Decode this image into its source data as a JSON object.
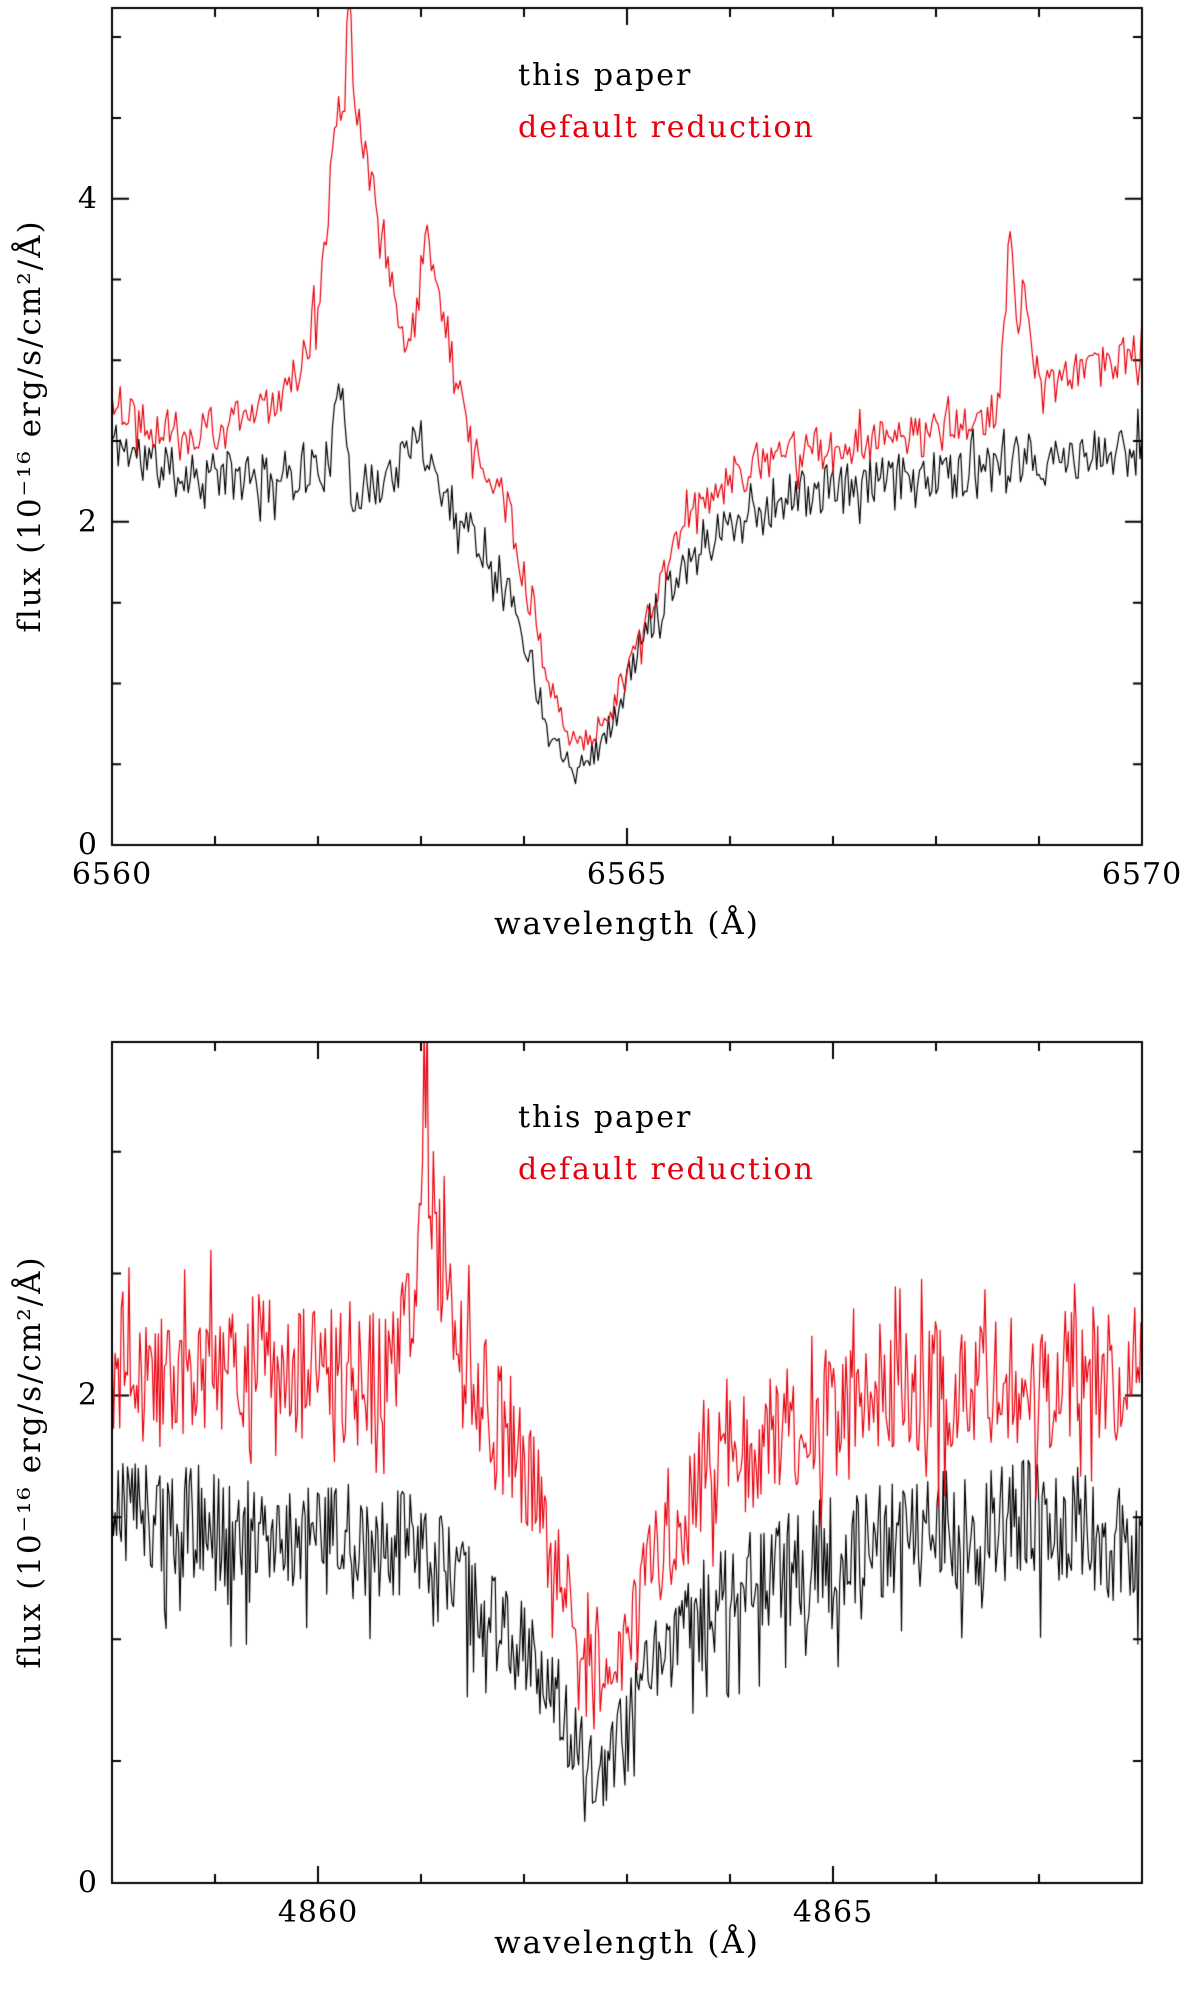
{
  "figure": {
    "description": "Two stacked spectral comparison plots (H-alpha top, H-beta bottom) comparing a custom reduction against the default reduction"
  },
  "chart_data": [
    {
      "type": "line",
      "title": "",
      "xlabel": "wavelength (Å)",
      "ylabel": "flux (10⁻¹⁶ erg/s/cm²/Å)",
      "xlim": [
        6560,
        6570
      ],
      "ylim": [
        0,
        5.18
      ],
      "xticks_major": [
        6560,
        6565,
        6570
      ],
      "xtick_labels": [
        "6560",
        "6565",
        "6570"
      ],
      "xticks_minor_step": 1,
      "yticks_major": [
        0,
        2,
        4
      ],
      "ytick_labels": [
        "0",
        "2",
        "4"
      ],
      "yticks_minor_step": 0.5,
      "grid": false,
      "legend_position": "top-center-inside",
      "legend": [
        {
          "label": "this paper",
          "color": "#000000"
        },
        {
          "label": "default reduction",
          "color": "#e8000d"
        }
      ],
      "series": [
        {
          "name": "this paper",
          "color": "#000000",
          "sample_step": 0.02,
          "seed": 11,
          "noise": {
            "amp": 0.16,
            "spike_prob": 0.1,
            "spike_mult": 1.8,
            "bias": "both"
          },
          "anchors": [
            [
              6560.0,
              2.5
            ],
            [
              6560.3,
              2.4
            ],
            [
              6560.6,
              2.3
            ],
            [
              6561.0,
              2.3
            ],
            [
              6561.4,
              2.25
            ],
            [
              6561.8,
              2.3
            ],
            [
              6562.1,
              2.35
            ],
            [
              6562.25,
              2.9
            ],
            [
              6562.32,
              2.2
            ],
            [
              6562.5,
              2.2
            ],
            [
              6562.8,
              2.35
            ],
            [
              6563.0,
              2.55
            ],
            [
              6563.1,
              2.35
            ],
            [
              6563.3,
              2.1
            ],
            [
              6563.5,
              1.95
            ],
            [
              6563.7,
              1.75
            ],
            [
              6563.9,
              1.5
            ],
            [
              6564.0,
              1.3
            ],
            [
              6564.1,
              1.05
            ],
            [
              6564.2,
              0.8
            ],
            [
              6564.35,
              0.6
            ],
            [
              6564.5,
              0.5
            ],
            [
              6564.65,
              0.55
            ],
            [
              6564.8,
              0.68
            ],
            [
              6564.95,
              0.9
            ],
            [
              6565.1,
              1.2
            ],
            [
              6565.3,
              1.5
            ],
            [
              6565.5,
              1.7
            ],
            [
              6565.7,
              1.85
            ],
            [
              6565.9,
              1.95
            ],
            [
              6566.2,
              2.05
            ],
            [
              6566.5,
              2.15
            ],
            [
              6567.0,
              2.2
            ],
            [
              6567.5,
              2.25
            ],
            [
              6568.0,
              2.3
            ],
            [
              6568.5,
              2.3
            ],
            [
              6569.0,
              2.35
            ],
            [
              6569.5,
              2.4
            ],
            [
              6570.0,
              2.45
            ]
          ]
        },
        {
          "name": "default reduction",
          "color": "#e8000d",
          "sample_step": 0.02,
          "seed": 22,
          "noise": {
            "amp": 0.14,
            "spike_prob": 0.1,
            "spike_mult": 1.7,
            "bias": "both"
          },
          "anchors": [
            [
              6560.0,
              2.75
            ],
            [
              6560.4,
              2.6
            ],
            [
              6560.8,
              2.55
            ],
            [
              6561.2,
              2.6
            ],
            [
              6561.5,
              2.7
            ],
            [
              6561.8,
              2.95
            ],
            [
              6562.0,
              3.3
            ],
            [
              6562.1,
              3.9
            ],
            [
              6562.15,
              4.35
            ],
            [
              6562.2,
              4.6
            ],
            [
              6562.25,
              4.5
            ],
            [
              6562.3,
              5.3
            ],
            [
              6562.35,
              4.7
            ],
            [
              6562.45,
              4.35
            ],
            [
              6562.55,
              4.0
            ],
            [
              6562.7,
              3.5
            ],
            [
              6562.85,
              3.1
            ],
            [
              6562.95,
              3.2
            ],
            [
              6563.05,
              3.75
            ],
            [
              6563.15,
              3.45
            ],
            [
              6563.25,
              3.2
            ],
            [
              6563.35,
              2.8
            ],
            [
              6563.5,
              2.5
            ],
            [
              6563.65,
              2.35
            ],
            [
              6563.8,
              2.15
            ],
            [
              6563.95,
              1.8
            ],
            [
              6564.1,
              1.4
            ],
            [
              6564.25,
              1.0
            ],
            [
              6564.4,
              0.75
            ],
            [
              6564.55,
              0.65
            ],
            [
              6564.7,
              0.7
            ],
            [
              6564.85,
              0.85
            ],
            [
              6565.0,
              1.05
            ],
            [
              6565.2,
              1.4
            ],
            [
              6565.4,
              1.75
            ],
            [
              6565.6,
              2.0
            ],
            [
              6565.8,
              2.15
            ],
            [
              6566.1,
              2.3
            ],
            [
              6566.4,
              2.4
            ],
            [
              6566.8,
              2.45
            ],
            [
              6567.2,
              2.5
            ],
            [
              6567.6,
              2.5
            ],
            [
              6568.0,
              2.55
            ],
            [
              6568.4,
              2.6
            ],
            [
              6568.6,
              2.7
            ],
            [
              6568.72,
              3.8
            ],
            [
              6568.8,
              3.2
            ],
            [
              6568.88,
              3.45
            ],
            [
              6569.0,
              2.8
            ],
            [
              6569.2,
              2.85
            ],
            [
              6569.5,
              2.95
            ],
            [
              6569.8,
              3.0
            ],
            [
              6570.0,
              3.1
            ]
          ]
        }
      ]
    },
    {
      "type": "line",
      "title": "",
      "xlabel": "wavelength (Å)",
      "ylabel": "flux (10⁻¹⁶ erg/s/cm²/Å)",
      "xlim": [
        4858,
        4868
      ],
      "ylim": [
        0,
        3.45
      ],
      "xticks_major": [
        4860,
        4865
      ],
      "xtick_labels": [
        "4860",
        "4865"
      ],
      "xticks_minor_step": 1,
      "yticks_major": [
        0,
        2
      ],
      "ytick_labels": [
        "0",
        "2"
      ],
      "yticks_minor_step": 0.5,
      "grid": false,
      "legend_position": "top-center-inside",
      "legend": [
        {
          "label": "this paper",
          "color": "#000000"
        },
        {
          "label": "default reduction",
          "color": "#e8000d"
        }
      ],
      "series": [
        {
          "name": "this paper",
          "color": "#000000",
          "sample_step": 0.015,
          "seed": 33,
          "noise": {
            "amp": 0.3,
            "spike_prob": 0.12,
            "spike_mult": 2.0,
            "bias": "down"
          },
          "anchors": [
            [
              4858.0,
              1.55
            ],
            [
              4858.5,
              1.5
            ],
            [
              4859.0,
              1.45
            ],
            [
              4859.5,
              1.45
            ],
            [
              4860.0,
              1.4
            ],
            [
              4860.5,
              1.4
            ],
            [
              4861.0,
              1.35
            ],
            [
              4861.3,
              1.25
            ],
            [
              4861.6,
              1.1
            ],
            [
              4861.9,
              1.0
            ],
            [
              4862.2,
              0.85
            ],
            [
              4862.45,
              0.65
            ],
            [
              4862.6,
              0.5
            ],
            [
              4862.75,
              0.42
            ],
            [
              4862.9,
              0.55
            ],
            [
              4863.1,
              0.8
            ],
            [
              4863.4,
              1.0
            ],
            [
              4863.7,
              1.1
            ],
            [
              4864.0,
              1.2
            ],
            [
              4864.5,
              1.3
            ],
            [
              4865.0,
              1.35
            ],
            [
              4865.5,
              1.4
            ],
            [
              4866.0,
              1.45
            ],
            [
              4866.5,
              1.45
            ],
            [
              4867.0,
              1.5
            ],
            [
              4867.5,
              1.45
            ],
            [
              4868.0,
              1.4
            ]
          ]
        },
        {
          "name": "default reduction",
          "color": "#e8000d",
          "sample_step": 0.015,
          "seed": 44,
          "noise": {
            "amp": 0.28,
            "spike_prob": 0.12,
            "spike_mult": 1.8,
            "bias": "both"
          },
          "anchors": [
            [
              4858.0,
              2.1
            ],
            [
              4858.5,
              2.05
            ],
            [
              4859.0,
              2.1
            ],
            [
              4859.5,
              2.15
            ],
            [
              4860.0,
              2.1
            ],
            [
              4860.4,
              2.05
            ],
            [
              4860.7,
              2.1
            ],
            [
              4860.95,
              2.5
            ],
            [
              4861.05,
              3.4
            ],
            [
              4861.1,
              2.9
            ],
            [
              4861.2,
              2.45
            ],
            [
              4861.35,
              2.2
            ],
            [
              4861.5,
              2.05
            ],
            [
              4861.7,
              1.95
            ],
            [
              4861.9,
              1.8
            ],
            [
              4862.1,
              1.6
            ],
            [
              4862.3,
              1.35
            ],
            [
              4862.5,
              1.1
            ],
            [
              4862.65,
              0.9
            ],
            [
              4862.8,
              0.8
            ],
            [
              4862.95,
              0.95
            ],
            [
              4863.1,
              1.15
            ],
            [
              4863.3,
              1.35
            ],
            [
              4863.6,
              1.55
            ],
            [
              4863.9,
              1.7
            ],
            [
              4864.2,
              1.8
            ],
            [
              4864.6,
              1.85
            ],
            [
              4865.0,
              1.9
            ],
            [
              4865.4,
              1.95
            ],
            [
              4865.8,
              2.0
            ],
            [
              4866.2,
              2.0
            ],
            [
              4866.6,
              2.05
            ],
            [
              4867.0,
              2.05
            ],
            [
              4867.4,
              2.1
            ],
            [
              4867.8,
              2.05
            ],
            [
              4868.0,
              2.1
            ]
          ]
        }
      ]
    }
  ]
}
